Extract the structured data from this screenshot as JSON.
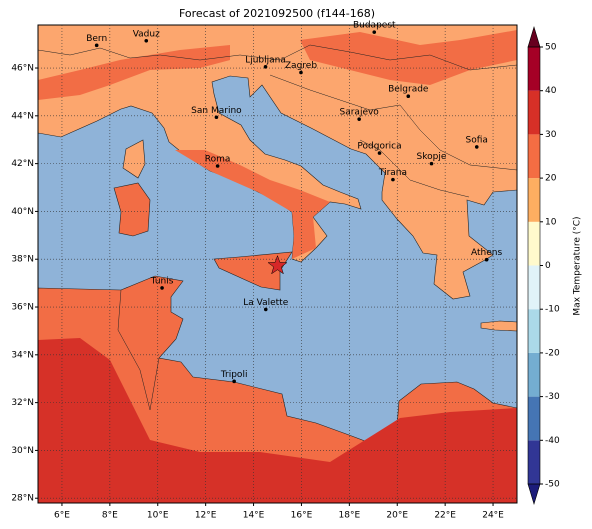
{
  "chart_data": {
    "type": "map",
    "title": "Forecast of 2021092500 (f144-168)",
    "xlim": [
      5,
      25
    ],
    "ylim": [
      27.8,
      47.8
    ],
    "xticks": [
      {
        "value": 6,
        "label": "6°E"
      },
      {
        "value": 8,
        "label": "8°E"
      },
      {
        "value": 10,
        "label": "10°E"
      },
      {
        "value": 12,
        "label": "12°E"
      },
      {
        "value": 14,
        "label": "14°E"
      },
      {
        "value": 16,
        "label": "16°E"
      },
      {
        "value": 18,
        "label": "18°E"
      },
      {
        "value": 20,
        "label": "20°E"
      },
      {
        "value": 22,
        "label": "22°E"
      },
      {
        "value": 24,
        "label": "24°E"
      }
    ],
    "yticks": [
      {
        "value": 28,
        "label": "28°N"
      },
      {
        "value": 30,
        "label": "30°N"
      },
      {
        "value": 32,
        "label": "32°N"
      },
      {
        "value": 34,
        "label": "34°N"
      },
      {
        "value": 36,
        "label": "36°N"
      },
      {
        "value": 38,
        "label": "38°N"
      },
      {
        "value": 40,
        "label": "40°N"
      },
      {
        "value": 42,
        "label": "42°N"
      },
      {
        "value": 44,
        "label": "44°N"
      },
      {
        "value": 46,
        "label": "46°N"
      }
    ],
    "grid": true,
    "cities": [
      {
        "name": "Bern",
        "lon": 7.45,
        "lat": 46.95
      },
      {
        "name": "Vaduz",
        "lon": 9.52,
        "lat": 47.14
      },
      {
        "name": "Budapest",
        "lon": 19.04,
        "lat": 47.5
      },
      {
        "name": "Ljubljana",
        "lon": 14.5,
        "lat": 46.05
      },
      {
        "name": "Zagreb",
        "lon": 15.98,
        "lat": 45.81
      },
      {
        "name": "Belgrade",
        "lon": 20.46,
        "lat": 44.82
      },
      {
        "name": "Sarajevo",
        "lon": 18.41,
        "lat": 43.86
      },
      {
        "name": "San Marino",
        "lon": 12.45,
        "lat": 43.94
      },
      {
        "name": "Sofia",
        "lon": 23.32,
        "lat": 42.7
      },
      {
        "name": "Podgorica",
        "lon": 19.26,
        "lat": 42.44
      },
      {
        "name": "Skopje",
        "lon": 21.43,
        "lat": 42.0
      },
      {
        "name": "Roma",
        "lon": 12.5,
        "lat": 41.9
      },
      {
        "name": "Tirana",
        "lon": 19.82,
        "lat": 41.33
      },
      {
        "name": "Athens",
        "lon": 23.73,
        "lat": 37.98
      },
      {
        "name": "Tunis",
        "lon": 10.18,
        "lat": 36.8
      },
      {
        "name": "La Valette",
        "lon": 14.51,
        "lat": 35.9
      },
      {
        "name": "Tripoli",
        "lon": 13.19,
        "lat": 32.89
      }
    ],
    "marker": {
      "lon": 15.0,
      "lat": 37.73,
      "color": "#d62728"
    },
    "colorbar": {
      "label": "Max Temperature (°C)",
      "lim": [
        -50,
        50
      ],
      "ticks": [
        -50,
        -40,
        -30,
        -20,
        -10,
        0,
        10,
        20,
        30,
        40,
        50
      ],
      "colors": [
        "#313695",
        "#4575b4",
        "#74add1",
        "#abd9e9",
        "#e0f3f8",
        "#fffacc",
        "#fdae61",
        "#f46d43",
        "#d73027",
        "#a50026"
      ],
      "under": "#1c1c7a",
      "over": "#67001f"
    }
  }
}
